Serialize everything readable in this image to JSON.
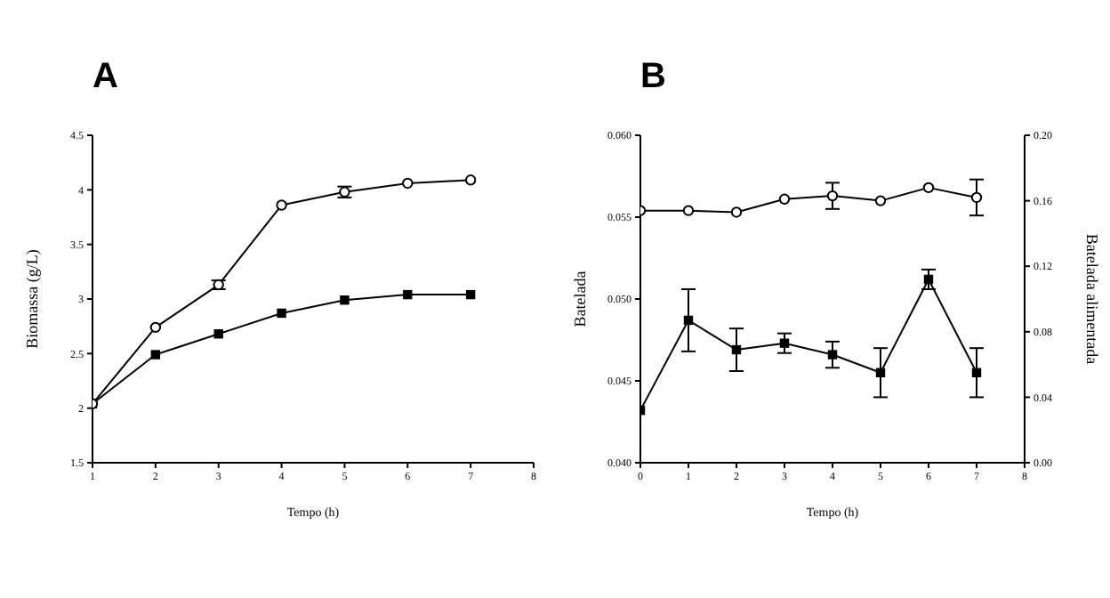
{
  "chart_data": [
    {
      "type": "line",
      "title": "A",
      "xlabel": "Tempo (h)",
      "ylabel": "Biomassa (g/L)",
      "x": [
        1,
        2,
        3,
        4,
        5,
        6,
        7
      ],
      "xlim": [
        1,
        8
      ],
      "xticks": [
        1,
        2,
        3,
        4,
        5,
        6,
        7,
        8
      ],
      "ylim": [
        1.5,
        4.5
      ],
      "yticks": [
        1.5,
        2.0,
        2.5,
        3.0,
        3.5,
        4.0,
        4.5
      ],
      "series": [
        {
          "color": "#000000",
          "marker": "square",
          "values": [
            2.04,
            2.49,
            2.68,
            2.87,
            2.99,
            3.04,
            3.04
          ]
        },
        {
          "color": "#000000",
          "marker": "circle",
          "values": [
            2.04,
            2.74,
            3.13,
            3.86,
            3.98,
            4.06,
            4.09
          ],
          "errors": [
            null,
            null,
            0.04,
            null,
            0.05,
            null,
            null
          ]
        }
      ]
    },
    {
      "type": "line",
      "title": "B",
      "xlabel": "Tempo (h)",
      "ylabel": "Batelada",
      "y2label": "Batelada alimentada",
      "x": [
        0,
        1,
        2,
        3,
        4,
        5,
        6,
        7
      ],
      "xlim": [
        0,
        8
      ],
      "xticks": [
        0,
        1,
        2,
        3,
        4,
        5,
        6,
        7,
        8
      ],
      "ylim": [
        0.04,
        0.06
      ],
      "yticks": [
        {
          "value": 0.04,
          "label": "0.040"
        },
        {
          "value": 0.045,
          "label": "0.045"
        },
        {
          "value": 0.05,
          "label": "0.050"
        },
        {
          "value": 0.055,
          "label": "0.055"
        },
        {
          "value": 0.06,
          "label": "0.060"
        }
      ],
      "y2lim": [
        0,
        0.2
      ],
      "y2ticks": [
        {
          "value": 0,
          "label": "0.00"
        },
        0.04,
        0.08,
        0.12,
        0.16,
        {
          "value": 0.2,
          "label": "0.20"
        }
      ],
      "series": [
        {
          "color": "#000000",
          "marker": "circle",
          "axis": "y2",
          "values": [
            0.154,
            0.154,
            0.153,
            0.161,
            0.163,
            0.16,
            0.168,
            0.162
          ],
          "errors": [
            null,
            null,
            null,
            null,
            0.008,
            null,
            null,
            0.011
          ]
        },
        {
          "color": "#000000",
          "marker": "square",
          "values": [
            0.0432,
            0.0487,
            0.0469,
            0.0473,
            0.0466,
            0.0455,
            0.0512,
            0.0455
          ],
          "errors": [
            null,
            0.0019,
            0.0013,
            0.0006,
            0.0008,
            0.0015,
            0.0006,
            0.0015
          ]
        }
      ]
    }
  ]
}
